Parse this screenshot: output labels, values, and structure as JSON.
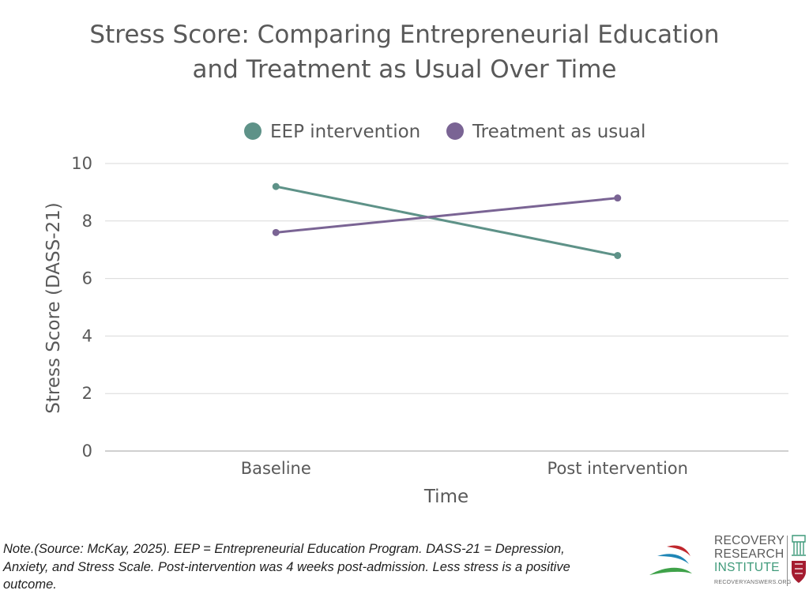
{
  "chart_data": {
    "type": "line",
    "title_lines": [
      "Stress Score: Comparing Entrepreneurial Education",
      "and Treatment as Usual Over Time"
    ],
    "categories": [
      "Baseline",
      "Post intervention"
    ],
    "series": [
      {
        "name": "EEP intervention",
        "values": [
          9.2,
          6.8
        ],
        "color": "#5e9288"
      },
      {
        "name": "Treatment as usual",
        "values": [
          7.6,
          8.8
        ],
        "color": "#7a6494"
      }
    ],
    "xlabel": "Time",
    "ylabel": "Stress Score (DASS-21)",
    "ylim": [
      0,
      10
    ],
    "yticks": [
      "0",
      "2",
      "4",
      "6",
      "8",
      "10"
    ],
    "grid": true,
    "legend_position": "top"
  },
  "note": "Note.(Source: McKay, 2025).  EEP = Entrepreneurial Education Program. DASS-21 = Depression, Anxiety, and Stress Scale. Post-intervention was 4 weeks post-admission. Less stress is a positive outcome.",
  "logo": {
    "line1": "RECOVERY",
    "line2": "RESEARCH",
    "line3": "INSTITUTE",
    "url": "RECOVERYANSWERS.ORG"
  }
}
